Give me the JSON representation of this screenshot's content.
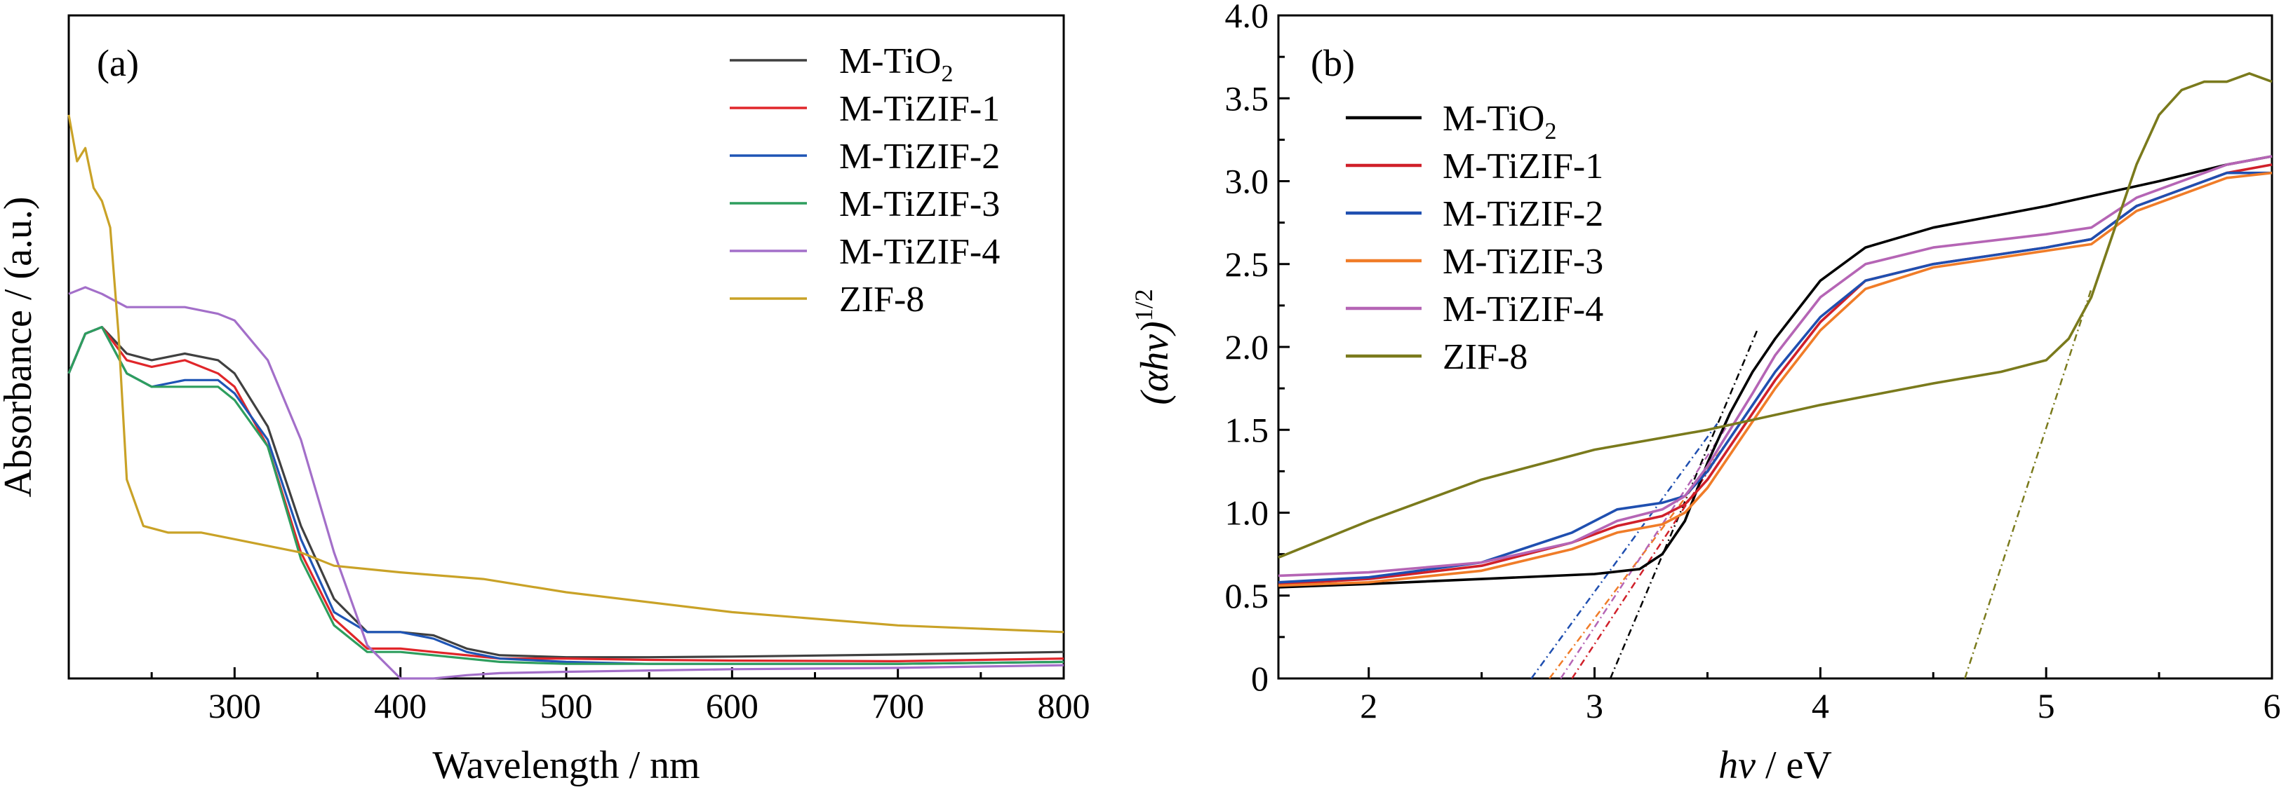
{
  "chart_data": [
    {
      "panel": "(a)",
      "type": "line",
      "xlabel": "Wavelength / nm",
      "ylabel": "Absorbance / (a.u.)",
      "xlim": [
        200,
        800
      ],
      "ylim": [
        0,
        1
      ],
      "xticks": [
        300,
        400,
        500,
        600,
        700,
        800
      ],
      "yticks": [],
      "grid": false,
      "legend_position": "top-right",
      "series": [
        {
          "name": "M-TiO",
          "name_sub": "2",
          "color": "#404040",
          "x": [
            200,
            210,
            220,
            235,
            250,
            270,
            290,
            300,
            320,
            340,
            360,
            380,
            400,
            420,
            440,
            460,
            500,
            550,
            600,
            700,
            800
          ],
          "y": [
            0.46,
            0.52,
            0.53,
            0.49,
            0.48,
            0.49,
            0.48,
            0.46,
            0.38,
            0.23,
            0.12,
            0.07,
            0.07,
            0.065,
            0.045,
            0.035,
            0.032,
            0.032,
            0.033,
            0.036,
            0.04
          ]
        },
        {
          "name": "M-TiZIF-1",
          "name_sub": "",
          "color": "#e0262a",
          "x": [
            200,
            210,
            220,
            235,
            250,
            270,
            290,
            300,
            320,
            340,
            360,
            380,
            400,
            420,
            440,
            460,
            500,
            550,
            600,
            700,
            800
          ],
          "y": [
            0.46,
            0.52,
            0.53,
            0.48,
            0.47,
            0.48,
            0.46,
            0.44,
            0.35,
            0.19,
            0.09,
            0.045,
            0.045,
            0.04,
            0.035,
            0.03,
            0.03,
            0.028,
            0.027,
            0.026,
            0.03
          ]
        },
        {
          "name": "M-TiZIF-2",
          "name_sub": "",
          "color": "#1f55b5",
          "x": [
            200,
            210,
            220,
            235,
            250,
            270,
            290,
            300,
            320,
            340,
            360,
            380,
            400,
            420,
            440,
            460,
            500,
            550,
            600,
            700,
            800
          ],
          "y": [
            0.46,
            0.52,
            0.53,
            0.46,
            0.44,
            0.45,
            0.45,
            0.43,
            0.36,
            0.21,
            0.1,
            0.07,
            0.07,
            0.06,
            0.04,
            0.03,
            0.025,
            0.022,
            0.022,
            0.022,
            0.025
          ]
        },
        {
          "name": "M-TiZIF-3",
          "name_sub": "",
          "color": "#2e9e5e",
          "x": [
            200,
            210,
            220,
            235,
            250,
            270,
            290,
            300,
            320,
            340,
            360,
            380,
            400,
            420,
            440,
            460,
            500,
            550,
            600,
            700,
            800
          ],
          "y": [
            0.46,
            0.52,
            0.53,
            0.46,
            0.44,
            0.44,
            0.44,
            0.42,
            0.35,
            0.18,
            0.08,
            0.04,
            0.04,
            0.035,
            0.03,
            0.025,
            0.022,
            0.022,
            0.022,
            0.022,
            0.025
          ]
        },
        {
          "name": "M-TiZIF-4",
          "name_sub": "",
          "color": "#a36fc9",
          "x": [
            200,
            210,
            220,
            235,
            250,
            270,
            290,
            300,
            320,
            340,
            360,
            380,
            400,
            420,
            440,
            460,
            500,
            550,
            600,
            700,
            800
          ],
          "y": [
            0.58,
            0.59,
            0.58,
            0.56,
            0.56,
            0.56,
            0.55,
            0.54,
            0.48,
            0.36,
            0.19,
            0.05,
            0.0,
            0.0,
            0.005,
            0.008,
            0.01,
            0.012,
            0.014,
            0.016,
            0.02
          ]
        },
        {
          "name": "ZIF-8",
          "name_sub": "",
          "color": "#c9a227",
          "x": [
            200,
            205,
            210,
            215,
            220,
            225,
            230,
            235,
            245,
            260,
            280,
            300,
            320,
            340,
            360,
            400,
            450,
            500,
            600,
            700,
            800
          ],
          "y": [
            0.85,
            0.78,
            0.8,
            0.74,
            0.72,
            0.68,
            0.52,
            0.3,
            0.23,
            0.22,
            0.22,
            0.21,
            0.2,
            0.19,
            0.17,
            0.16,
            0.15,
            0.13,
            0.1,
            0.08,
            0.07
          ]
        }
      ]
    },
    {
      "panel": "(b)",
      "type": "line",
      "xlabel_italic": "hν",
      "xlabel_rest": " / eV",
      "ylabel_italic": "(αhν)",
      "ylabel_sup": "1/2",
      "xlim": [
        1.6,
        6.0
      ],
      "ylim": [
        0,
        4.0
      ],
      "xticks": [
        2,
        3,
        4,
        5,
        6
      ],
      "yticks": [
        "0",
        "0.5",
        "1.0",
        "1.5",
        "2.0",
        "2.5",
        "3.0",
        "3.5",
        "4.0"
      ],
      "grid": false,
      "legend_position": "top-left",
      "series": [
        {
          "name": "M-TiO",
          "name_sub": "2",
          "color": "#000000",
          "x": [
            1.6,
            2.0,
            2.5,
            3.0,
            3.2,
            3.3,
            3.4,
            3.5,
            3.6,
            3.7,
            3.8,
            4.0,
            4.2,
            4.5,
            5.0,
            5.5,
            5.8,
            6.0
          ],
          "y": [
            0.55,
            0.57,
            0.6,
            0.63,
            0.66,
            0.75,
            0.95,
            1.3,
            1.6,
            1.85,
            2.05,
            2.4,
            2.6,
            2.72,
            2.85,
            3.0,
            3.1,
            3.15
          ]
        },
        {
          "name": "M-TiZIF-1",
          "name_sub": "",
          "color": "#d0202a",
          "x": [
            1.6,
            2.0,
            2.5,
            2.9,
            3.1,
            3.3,
            3.4,
            3.5,
            3.6,
            3.7,
            3.8,
            4.0,
            4.2,
            4.5,
            5.0,
            5.2,
            5.4,
            5.8,
            6.0
          ],
          "y": [
            0.57,
            0.6,
            0.68,
            0.82,
            0.92,
            0.98,
            1.05,
            1.2,
            1.4,
            1.6,
            1.8,
            2.15,
            2.4,
            2.5,
            2.6,
            2.65,
            2.85,
            3.05,
            3.1
          ]
        },
        {
          "name": "M-TiZIF-2",
          "name_sub": "",
          "color": "#1f4fb0",
          "x": [
            1.6,
            2.0,
            2.5,
            2.9,
            3.1,
            3.3,
            3.4,
            3.5,
            3.6,
            3.7,
            3.8,
            4.0,
            4.2,
            4.5,
            5.0,
            5.2,
            5.4,
            5.8,
            6.0
          ],
          "y": [
            0.58,
            0.61,
            0.7,
            0.88,
            1.02,
            1.06,
            1.1,
            1.25,
            1.45,
            1.65,
            1.85,
            2.18,
            2.4,
            2.5,
            2.6,
            2.65,
            2.85,
            3.05,
            3.05
          ]
        },
        {
          "name": "M-TiZIF-3",
          "name_sub": "",
          "color": "#f07c28",
          "x": [
            1.6,
            2.0,
            2.5,
            2.9,
            3.1,
            3.3,
            3.4,
            3.5,
            3.6,
            3.7,
            3.8,
            4.0,
            4.2,
            4.5,
            5.0,
            5.2,
            5.4,
            5.8,
            6.0
          ],
          "y": [
            0.56,
            0.58,
            0.65,
            0.78,
            0.88,
            0.93,
            1.0,
            1.15,
            1.35,
            1.55,
            1.75,
            2.1,
            2.35,
            2.48,
            2.58,
            2.62,
            2.82,
            3.02,
            3.05
          ]
        },
        {
          "name": "M-TiZIF-4",
          "name_sub": "",
          "color": "#b565b5",
          "x": [
            1.6,
            2.0,
            2.5,
            2.9,
            3.1,
            3.3,
            3.4,
            3.5,
            3.6,
            3.7,
            3.8,
            4.0,
            4.2,
            4.5,
            5.0,
            5.2,
            5.4,
            5.8,
            6.0
          ],
          "y": [
            0.62,
            0.64,
            0.7,
            0.82,
            0.95,
            1.02,
            1.1,
            1.28,
            1.5,
            1.72,
            1.95,
            2.3,
            2.5,
            2.6,
            2.68,
            2.72,
            2.9,
            3.1,
            3.15
          ]
        },
        {
          "name": "ZIF-8",
          "name_sub": "",
          "color": "#7a7a1c",
          "x": [
            1.6,
            2.0,
            2.5,
            3.0,
            3.5,
            4.0,
            4.5,
            4.8,
            5.0,
            5.1,
            5.2,
            5.3,
            5.4,
            5.5,
            5.6,
            5.7,
            5.8,
            5.9,
            6.0
          ],
          "y": [
            0.73,
            0.95,
            1.2,
            1.38,
            1.5,
            1.65,
            1.78,
            1.85,
            1.92,
            2.05,
            2.3,
            2.7,
            3.1,
            3.4,
            3.55,
            3.6,
            3.6,
            3.65,
            3.6
          ]
        }
      ],
      "tangents": [
        {
          "color": "#000000",
          "x": [
            3.07,
            3.72
          ],
          "y": [
            0.0,
            2.1
          ]
        },
        {
          "color": "#d0202a",
          "x": [
            2.9,
            3.6
          ],
          "y": [
            0.0,
            1.45
          ]
        },
        {
          "color": "#1f4fb0",
          "x": [
            2.72,
            3.55
          ],
          "y": [
            0.0,
            1.55
          ]
        },
        {
          "color": "#f07c28",
          "x": [
            2.8,
            3.6
          ],
          "y": [
            0.0,
            1.45
          ]
        },
        {
          "color": "#b565b5",
          "x": [
            2.85,
            3.6
          ],
          "y": [
            0.0,
            1.55
          ]
        },
        {
          "color": "#7a7a1c",
          "x": [
            4.64,
            5.2
          ],
          "y": [
            0.0,
            2.35
          ]
        }
      ]
    }
  ]
}
